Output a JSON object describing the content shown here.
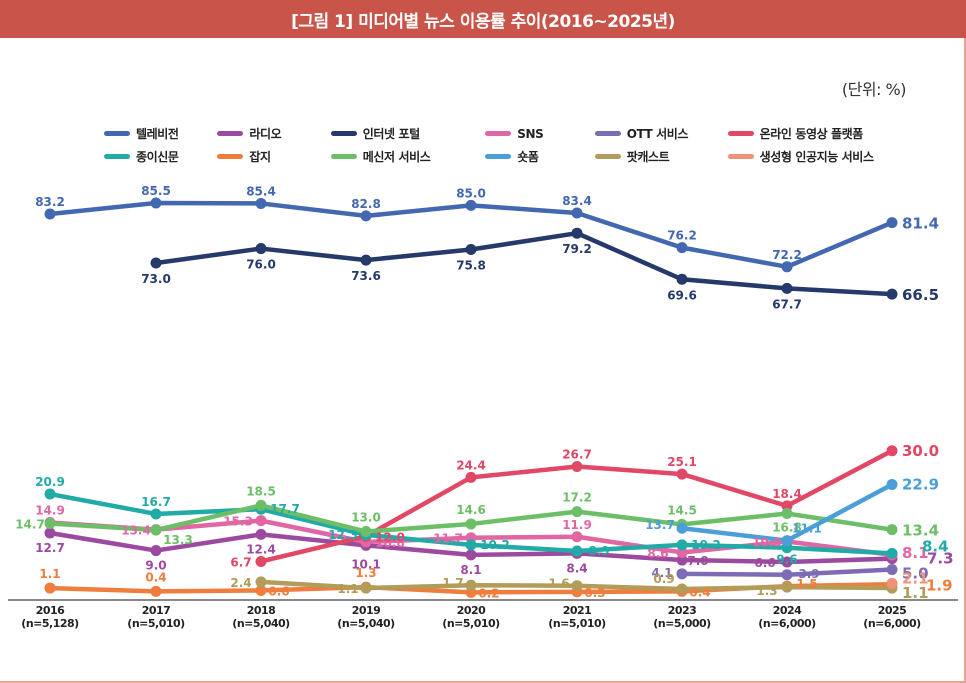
{
  "header": {
    "title": "[그림 1] 미디어별 뉴스 이용률 추이(2016~2025년)"
  },
  "unit_label": "(단위: %)",
  "chart_data": {
    "type": "line",
    "title": "[그림 1] 미디어별 뉴스 이용률 추이(2016~2025년)",
    "xlabel": "",
    "ylabel": "%",
    "grid": false,
    "legend_position": "top",
    "y_axis_broken": true,
    "ylim_lower": [
      0,
      30
    ],
    "ylim_upper": [
      65,
      86
    ],
    "categories": [
      "2016",
      "2017",
      "2018",
      "2019",
      "2020",
      "2021",
      "2023",
      "2024",
      "2025"
    ],
    "category_samples": [
      "(n=5,128)",
      "(n=5,010)",
      "(n=5,040)",
      "(n=5,040)",
      "(n=5,010)",
      "(n=5,010)",
      "(n=5,000)",
      "(n=6,000)",
      "(n=6,000)"
    ],
    "series": [
      {
        "name": "텔레비전",
        "color": "#4468b0",
        "values": [
          83.2,
          85.5,
          85.4,
          82.8,
          85.0,
          83.4,
          76.2,
          72.2,
          81.4
        ]
      },
      {
        "name": "라디오",
        "color": "#9c4aa0",
        "values": [
          12.7,
          9.0,
          12.4,
          10.1,
          8.1,
          8.4,
          7.0,
          6.6,
          7.3
        ]
      },
      {
        "name": "인터넷 포털",
        "color": "#25396a",
        "values": [
          null,
          73.0,
          76.0,
          73.6,
          75.8,
          79.2,
          69.6,
          67.7,
          66.5
        ]
      },
      {
        "name": "SNS",
        "color": "#e166a4",
        "values": [
          14.9,
          13.4,
          15.3,
          10.8,
          11.7,
          11.9,
          8.6,
          10.9,
          8.1
        ]
      },
      {
        "name": "OTT 서비스",
        "color": "#7b6cb5",
        "values": [
          null,
          null,
          null,
          null,
          null,
          null,
          4.1,
          3.9,
          5.0
        ]
      },
      {
        "name": "온라인 동영상 플랫폼",
        "color": "#e04866",
        "values": [
          null,
          null,
          6.7,
          12.0,
          24.4,
          26.7,
          25.1,
          18.4,
          30.0
        ]
      },
      {
        "name": "종이신문",
        "color": "#21aaa6",
        "values": [
          20.9,
          16.7,
          17.7,
          12.3,
          10.2,
          8.9,
          10.2,
          9.6,
          8.4
        ]
      },
      {
        "name": "잡지",
        "color": "#ef7d3e",
        "values": [
          1.1,
          0.4,
          0.6,
          1.3,
          0.2,
          0.3,
          0.4,
          1.5,
          1.9
        ]
      },
      {
        "name": "메신저 서비스",
        "color": "#6dbf67",
        "values": [
          14.7,
          13.3,
          18.5,
          13.0,
          14.6,
          17.2,
          14.5,
          16.8,
          13.4
        ]
      },
      {
        "name": "숏폼",
        "color": "#4a9fd8",
        "values": [
          null,
          null,
          null,
          null,
          null,
          null,
          13.7,
          11.1,
          22.9
        ]
      },
      {
        "name": "팟캐스트",
        "color": "#b29c5a",
        "values": [
          null,
          null,
          2.4,
          1.1,
          1.7,
          1.6,
          0.9,
          1.3,
          1.1
        ]
      },
      {
        "name": "생성형 인공지능 서비스",
        "color": "#f0917a",
        "values": [
          null,
          null,
          null,
          null,
          null,
          null,
          null,
          null,
          2.1
        ]
      }
    ]
  }
}
